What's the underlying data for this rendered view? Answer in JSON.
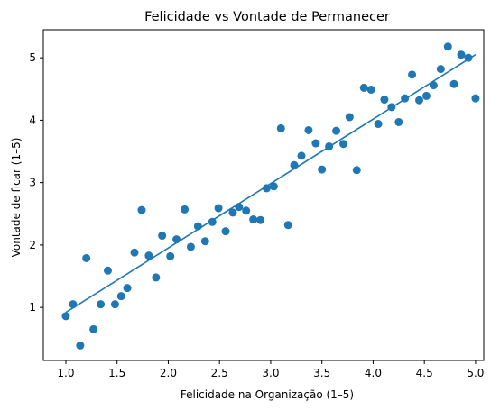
{
  "chart_data": {
    "type": "scatter",
    "title": "Felicidade vs Vontade de Permanecer",
    "xlabel": "Felicidade na Organização (1–5)",
    "ylabel": "Vontade de ficar (1–5)",
    "xlim": [
      0.78,
      5.08
    ],
    "ylim": [
      0.15,
      5.45
    ],
    "xticks": [
      1.0,
      1.5,
      2.0,
      2.5,
      3.0,
      3.5,
      4.0,
      4.5,
      5.0
    ],
    "xtick_labels": [
      "1.0",
      "1.5",
      "2.0",
      "2.5",
      "3.0",
      "3.5",
      "4.0",
      "4.5",
      "5.0"
    ],
    "yticks": [
      1,
      2,
      3,
      4,
      5
    ],
    "ytick_labels": [
      "1",
      "2",
      "3",
      "4",
      "5"
    ],
    "grid": false,
    "color": "#1f77b4",
    "series": [
      {
        "type": "scatter",
        "points": [
          [
            1.0,
            0.86
          ],
          [
            1.07,
            1.05
          ],
          [
            1.14,
            0.39
          ],
          [
            1.2,
            1.79
          ],
          [
            1.27,
            0.65
          ],
          [
            1.34,
            1.05
          ],
          [
            1.41,
            1.59
          ],
          [
            1.48,
            1.05
          ],
          [
            1.54,
            1.18
          ],
          [
            1.6,
            1.31
          ],
          [
            1.67,
            1.88
          ],
          [
            1.74,
            2.56
          ],
          [
            1.81,
            1.83
          ],
          [
            1.88,
            1.48
          ],
          [
            1.94,
            2.15
          ],
          [
            2.02,
            1.82
          ],
          [
            2.08,
            2.09
          ],
          [
            2.16,
            2.57
          ],
          [
            2.22,
            1.97
          ],
          [
            2.29,
            2.3
          ],
          [
            2.36,
            2.06
          ],
          [
            2.43,
            2.37
          ],
          [
            2.49,
            2.59
          ],
          [
            2.56,
            2.22
          ],
          [
            2.63,
            2.52
          ],
          [
            2.69,
            2.61
          ],
          [
            2.76,
            2.55
          ],
          [
            2.83,
            2.41
          ],
          [
            2.9,
            2.4
          ],
          [
            2.96,
            2.91
          ],
          [
            3.03,
            2.94
          ],
          [
            3.1,
            3.87
          ],
          [
            3.17,
            2.32
          ],
          [
            3.23,
            3.28
          ],
          [
            3.3,
            3.43
          ],
          [
            3.37,
            3.84
          ],
          [
            3.44,
            3.63
          ],
          [
            3.5,
            3.21
          ],
          [
            3.57,
            3.58
          ],
          [
            3.64,
            3.83
          ],
          [
            3.71,
            3.62
          ],
          [
            3.77,
            4.05
          ],
          [
            3.84,
            3.2
          ],
          [
            3.91,
            4.52
          ],
          [
            3.98,
            4.49
          ],
          [
            4.05,
            3.94
          ],
          [
            4.11,
            4.33
          ],
          [
            4.18,
            4.21
          ],
          [
            4.25,
            3.97
          ],
          [
            4.31,
            4.35
          ],
          [
            4.38,
            4.73
          ],
          [
            4.45,
            4.32
          ],
          [
            4.52,
            4.39
          ],
          [
            4.59,
            4.56
          ],
          [
            4.66,
            4.82
          ],
          [
            4.73,
            5.18
          ],
          [
            4.79,
            4.58
          ],
          [
            4.86,
            5.05
          ],
          [
            4.93,
            5.0
          ],
          [
            5.0,
            4.35
          ]
        ]
      },
      {
        "type": "line",
        "points": [
          [
            1.0,
            0.92
          ],
          [
            5.0,
            5.05
          ]
        ]
      }
    ]
  }
}
